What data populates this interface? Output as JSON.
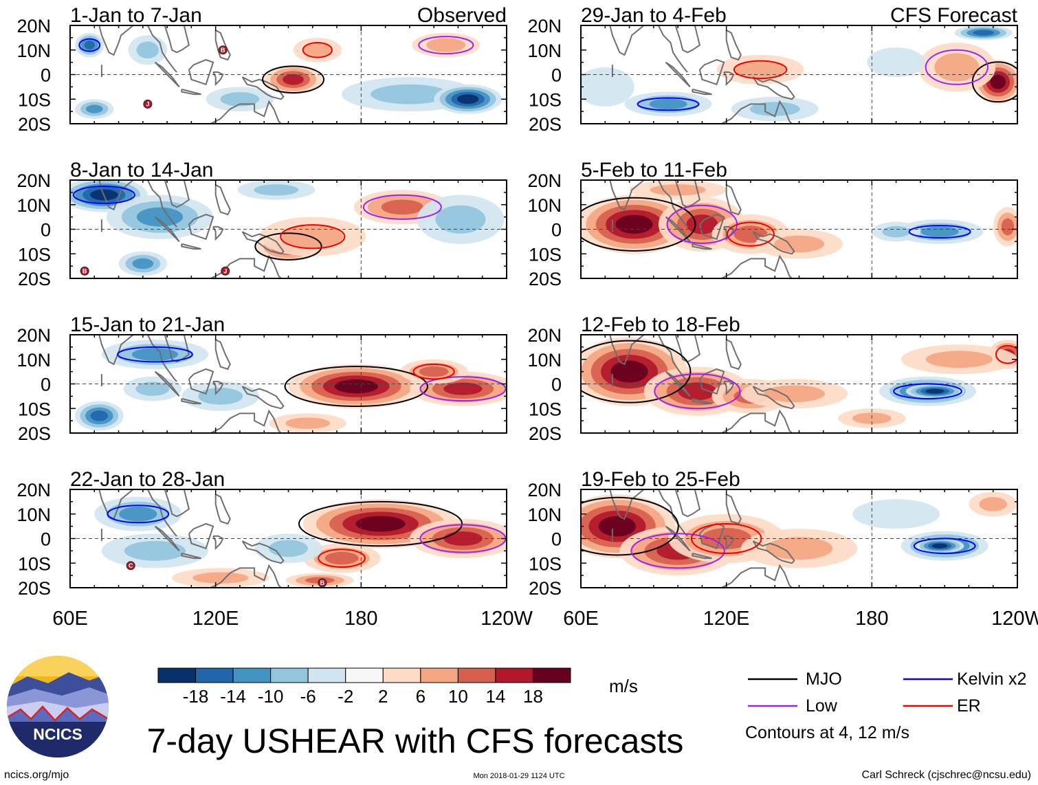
{
  "title": "7-day USHEAR with CFS forecasts",
  "chart_data": {
    "type": "heatmap",
    "variable": "USHEAR",
    "units": "m/s",
    "column_headers": [
      "Observed",
      "CFS Forecast"
    ],
    "lat_ticks": [
      "20N",
      "10N",
      "0",
      "10S",
      "20S"
    ],
    "lon_ticks": [
      "60E",
      "120E",
      "180",
      "120W"
    ],
    "lon_range": [
      60,
      240
    ],
    "lat_range": [
      -20,
      20
    ],
    "colorbar": {
      "levels": [
        "-18",
        "-14",
        "-10",
        "-6",
        "-2",
        "2",
        "6",
        "10",
        "14",
        "18"
      ],
      "colors": [
        "#08306b",
        "#2166ac",
        "#4393c3",
        "#92c5de",
        "#d1e5f0",
        "#f7f7f7",
        "#fddbc7",
        "#f4a582",
        "#d6604d",
        "#b2182b",
        "#67001f"
      ]
    },
    "panels": [
      {
        "label": "1-Jan to 7-Jan",
        "column": "observed",
        "blobs": [
          [
            68,
            12,
            6,
            5,
            -14
          ],
          [
            92,
            10,
            8,
            6,
            -6
          ],
          [
            152,
            -2,
            12,
            6,
            14
          ],
          [
            200,
            -8,
            28,
            7,
            -6
          ],
          [
            224,
            -10,
            14,
            6,
            -18
          ],
          [
            215,
            12,
            14,
            5,
            6
          ],
          [
            162,
            10,
            10,
            5,
            6
          ],
          [
            130,
            -10,
            14,
            5,
            -6
          ],
          [
            70,
            -14,
            8,
            4,
            -10
          ]
        ],
        "cyclones": [
          [
            "B",
            123,
            10
          ],
          [
            "J",
            92,
            -12
          ]
        ]
      },
      {
        "label": "8-Jan to 14-Jan",
        "column": "observed",
        "blobs": [
          [
            74,
            14,
            18,
            7,
            -18
          ],
          [
            97,
            5,
            22,
            9,
            -10
          ],
          [
            150,
            -7,
            13,
            6,
            14
          ],
          [
            160,
            -3,
            22,
            8,
            6
          ],
          [
            197,
            9,
            20,
            7,
            10
          ],
          [
            221,
            4,
            18,
            10,
            -6
          ],
          [
            145,
            16,
            16,
            4,
            -6
          ],
          [
            90,
            -14,
            10,
            5,
            -10
          ]
        ],
        "cyclones": [
          [
            "B",
            66,
            -17
          ],
          [
            "J",
            124,
            -17
          ]
        ]
      },
      {
        "label": "15-Jan to 21-Jan",
        "column": "observed",
        "blobs": [
          [
            178,
            -1,
            28,
            9,
            18
          ],
          [
            222,
            -2,
            22,
            7,
            14
          ],
          [
            210,
            5,
            14,
            5,
            10
          ],
          [
            95,
            12,
            22,
            6,
            -10
          ],
          [
            72,
            -13,
            10,
            6,
            -14
          ],
          [
            122,
            -5,
            16,
            6,
            -6
          ],
          [
            158,
            -16,
            16,
            4,
            6
          ],
          [
            94,
            -2,
            12,
            5,
            -6
          ]
        ],
        "cyclones": []
      },
      {
        "label": "22-Jan to 28-Jan",
        "column": "observed",
        "blobs": [
          [
            188,
            6,
            32,
            10,
            18
          ],
          [
            222,
            0,
            22,
            8,
            14
          ],
          [
            172,
            -8,
            16,
            6,
            10
          ],
          [
            88,
            10,
            18,
            7,
            -10
          ],
          [
            95,
            -5,
            22,
            7,
            -6
          ],
          [
            150,
            -4,
            14,
            6,
            -6
          ],
          [
            163,
            -17,
            14,
            3,
            10
          ],
          [
            122,
            -16,
            20,
            4,
            6
          ]
        ],
        "cyclones": [
          [
            "C",
            85,
            -11
          ],
          [
            "B",
            164,
            -18
          ]
        ]
      },
      {
        "label": "29-Jan to 4-Feb",
        "column": "forecast",
        "blobs": [
          [
            232,
            -3,
            10,
            9,
            18
          ],
          [
            215,
            3,
            16,
            10,
            6
          ],
          [
            134,
            2,
            18,
            6,
            6
          ],
          [
            96,
            -12,
            18,
            5,
            -10
          ],
          [
            140,
            -14,
            18,
            5,
            -6
          ],
          [
            226,
            17,
            12,
            3,
            -14
          ],
          [
            190,
            5,
            12,
            6,
            -2
          ],
          [
            70,
            -5,
            12,
            8,
            -2
          ]
        ],
        "cyclones": []
      },
      {
        "label": "5-Feb to 11-Feb",
        "column": "forecast",
        "blobs": [
          [
            82,
            2,
            24,
            12,
            18
          ],
          [
            110,
            2,
            18,
            11,
            14
          ],
          [
            130,
            -2,
            16,
            8,
            10
          ],
          [
            150,
            -6,
            18,
            6,
            6
          ],
          [
            208,
            -1,
            18,
            5,
            -10
          ],
          [
            190,
            -1,
            10,
            4,
            -6
          ],
          [
            236,
            1,
            6,
            8,
            10
          ],
          [
            100,
            16,
            20,
            4,
            6
          ]
        ],
        "cyclones": []
      },
      {
        "label": "12-Feb to 18-Feb",
        "column": "forecast",
        "blobs": [
          [
            80,
            5,
            24,
            14,
            18
          ],
          [
            108,
            -3,
            22,
            10,
            14
          ],
          [
            130,
            -5,
            16,
            7,
            10
          ],
          [
            148,
            -4,
            22,
            6,
            6
          ],
          [
            203,
            -3,
            20,
            6,
            -14
          ],
          [
            206,
            -3,
            12,
            3,
            -18
          ],
          [
            236,
            12,
            8,
            6,
            14
          ],
          [
            216,
            10,
            24,
            6,
            6
          ],
          [
            180,
            -14,
            14,
            4,
            6
          ]
        ],
        "cyclones": []
      },
      {
        "label": "19-Feb to 25-Feb",
        "column": "forecast",
        "blobs": [
          [
            75,
            5,
            24,
            13,
            18
          ],
          [
            100,
            -5,
            24,
            10,
            14
          ],
          [
            120,
            0,
            24,
            10,
            10
          ],
          [
            150,
            -4,
            24,
            8,
            6
          ],
          [
            210,
            -3,
            18,
            6,
            -14
          ],
          [
            208,
            -3,
            10,
            3,
            -18
          ],
          [
            230,
            14,
            10,
            5,
            6
          ],
          [
            190,
            10,
            18,
            6,
            -2
          ]
        ],
        "cyclones": []
      }
    ]
  },
  "legend": {
    "items": [
      {
        "label": "MJO",
        "color": "#000000"
      },
      {
        "label": "Kelvin x2",
        "color": "#0000ff"
      },
      {
        "label": "Low",
        "color": "#a020f0"
      },
      {
        "label": "ER",
        "color": "#ee0000"
      }
    ],
    "contour_note": "Contours at 4, 12 m/s"
  },
  "logo": {
    "text": "NCICS"
  },
  "footer": {
    "site": "ncics.org/mjo",
    "timestamp": "Mon 2018-01-29 1124 UTC",
    "credit": "Carl Schreck (cjschrec@ncsu.edu)"
  }
}
